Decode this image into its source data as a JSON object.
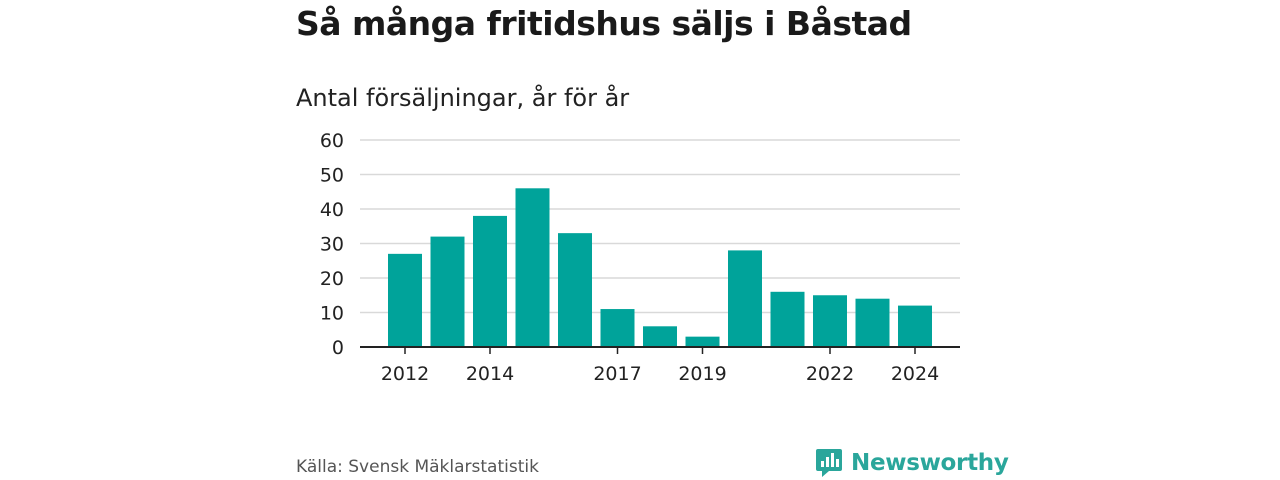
{
  "title": "Så många fritidshus säljs i Båstad",
  "subtitle": "Antal försäljningar, år för år",
  "source": "Källa: Svensk Mäklarstatistik",
  "brand": {
    "name": "Newsworthy",
    "icon": "newsworthy-logo-icon",
    "color": "#2aa69b"
  },
  "chart_data": {
    "type": "bar",
    "categories": [
      "2012",
      "2013",
      "2014",
      "2015",
      "2016",
      "2017",
      "2018",
      "2019",
      "2020",
      "2021",
      "2022",
      "2023",
      "2024"
    ],
    "x_tick_labels": [
      "2012",
      "2014",
      "2017",
      "2019",
      "2022",
      "2024"
    ],
    "values": [
      27,
      32,
      38,
      46,
      33,
      11,
      6,
      3,
      28,
      16,
      15,
      14,
      12
    ],
    "y_ticks": [
      "0",
      "10",
      "20",
      "30",
      "40",
      "50",
      "60"
    ],
    "ylim": [
      0,
      60
    ],
    "bar_color": "#00a39a",
    "grid": true
  }
}
